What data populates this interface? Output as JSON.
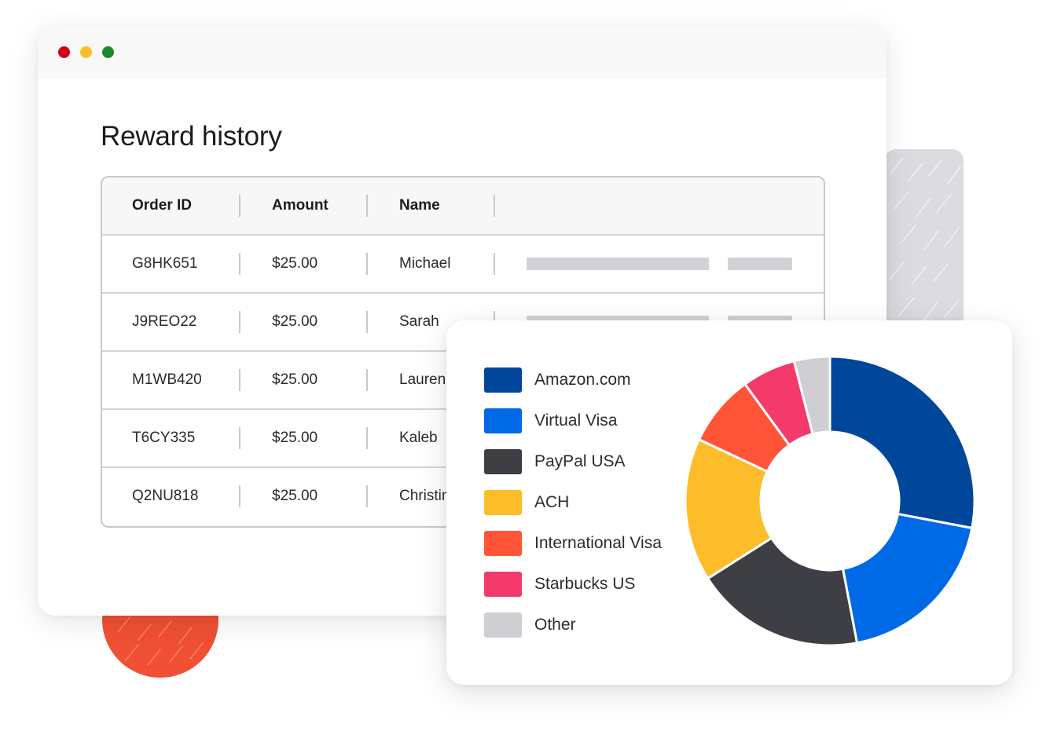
{
  "window": {
    "title": "Reward history"
  },
  "table": {
    "columns": [
      "Order ID",
      "Amount",
      "Name"
    ],
    "rows": [
      {
        "order_id": "G8HK651",
        "amount": "$25.00",
        "name": "Michael"
      },
      {
        "order_id": "J9REO22",
        "amount": "$25.00",
        "name": "Sarah"
      },
      {
        "order_id": "M1WB420",
        "amount": "$25.00",
        "name": "Lauren"
      },
      {
        "order_id": "T6CY335",
        "amount": "$25.00",
        "name": "Kaleb"
      },
      {
        "order_id": "Q2NU818",
        "amount": "$25.00",
        "name": "Christina"
      }
    ]
  },
  "colors": {
    "dot_red": "#d0021b",
    "dot_yellow": "#f9be2a",
    "dot_green": "#1b8a2c"
  },
  "chart_data": {
    "type": "pie",
    "variant": "donut",
    "categories": [
      "Amazon.com",
      "Virtual Visa",
      "PayPal USA",
      "ACH",
      "International Visa",
      "Starbucks US",
      "Other"
    ],
    "values": [
      28,
      19,
      19,
      16,
      8,
      6,
      4
    ],
    "colors": [
      "#00479b",
      "#006ae6",
      "#3e3f44",
      "#fdbd2a",
      "#ff5437",
      "#f43a6b",
      "#cfcfd3"
    ],
    "legend_position": "left",
    "title": "",
    "xlabel": "",
    "ylabel": ""
  }
}
